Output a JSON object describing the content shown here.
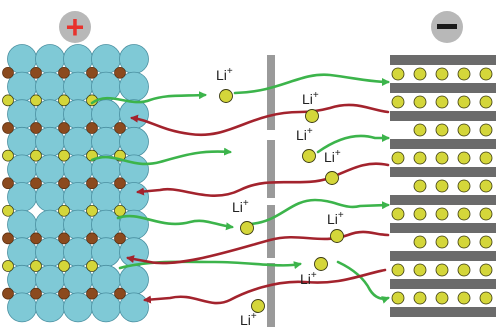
{
  "terminals": {
    "positive": {
      "symbol": "+",
      "color": "#e8322c",
      "bg": "#b8b8b8"
    },
    "negative": {
      "symbol": "−",
      "color": "#1a1a1a",
      "bg": "#b8b8b8"
    }
  },
  "ion_label": {
    "base": "Li",
    "sup": "+"
  },
  "colors": {
    "cathode_sphere": "#7fc9d6",
    "cathode_outline": "#4a8fa0",
    "metal_ion": "#8b4a1e",
    "lithium": "#d4d63a",
    "lithium_outline": "#3a3a10",
    "graphite_layer": "#6b6b6b",
    "separator": "#9a9a9a",
    "charge_arrow": "#3cb44b",
    "discharge_arrow": "#a3232d"
  }
}
